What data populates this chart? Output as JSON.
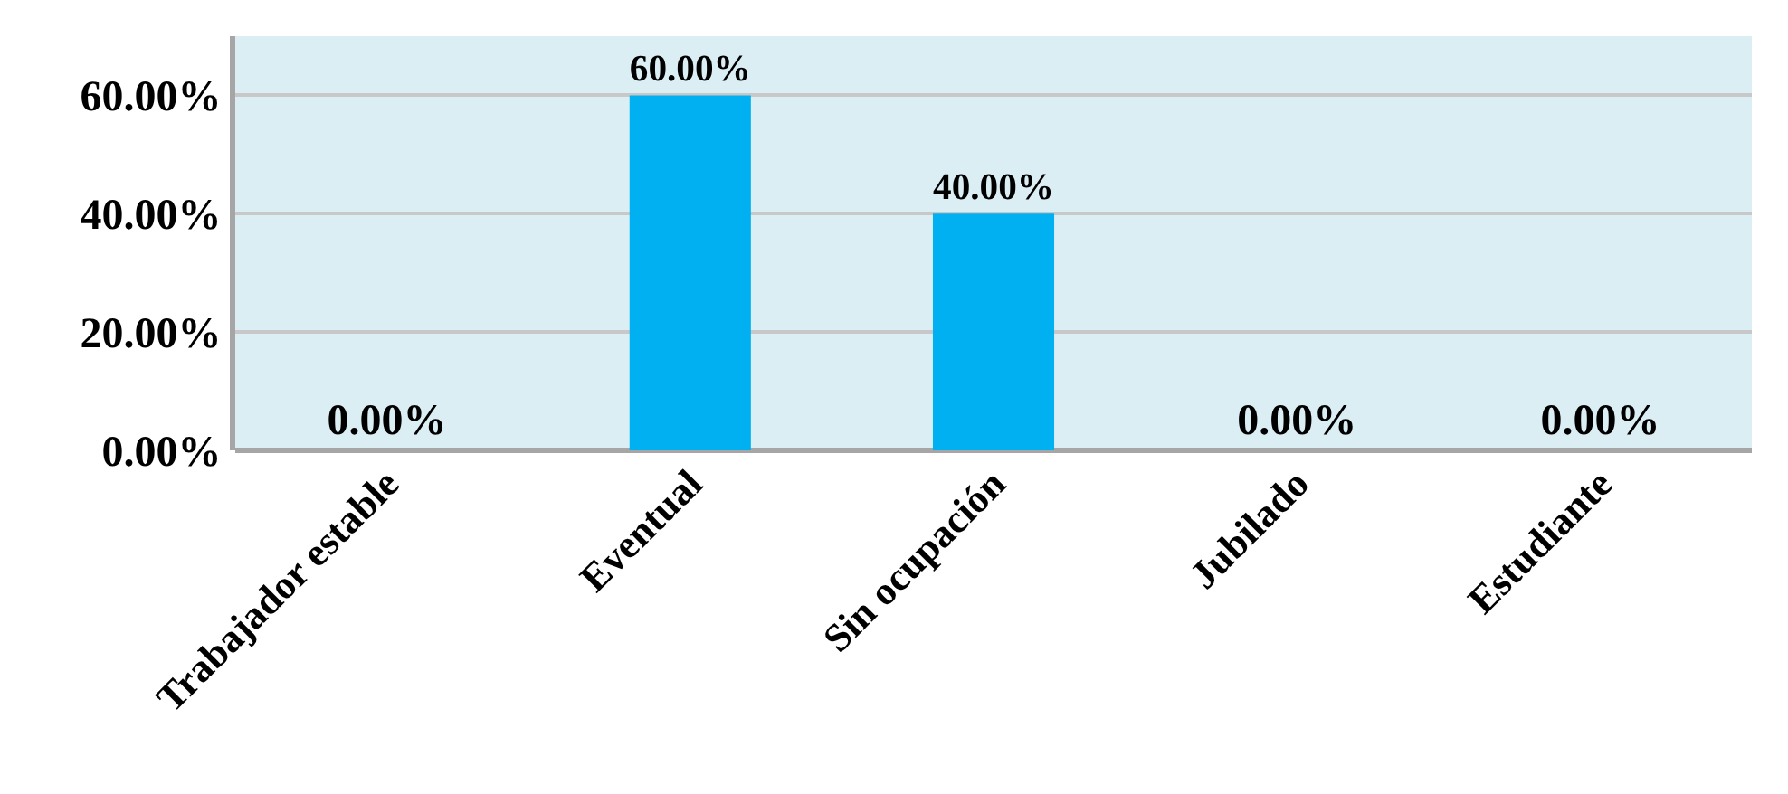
{
  "chart_data": {
    "type": "bar",
    "categories": [
      "Trabajador estable",
      "Eventual",
      "Sin ocupación",
      "Jubilado",
      "Estudiante"
    ],
    "values": [
      0,
      60,
      40,
      0,
      0
    ],
    "value_labels": [
      "0.00%",
      "60.00%",
      "40.00%",
      "0.00%",
      "0.00%"
    ],
    "color": "#00b0f0",
    "ylim": [
      0,
      70
    ],
    "yticks": [
      {
        "value": 0,
        "label": "0.00%"
      },
      {
        "value": 20,
        "label": "20.00%"
      },
      {
        "value": 40,
        "label": "40.00%"
      },
      {
        "value": 60,
        "label": "60.00%"
      }
    ],
    "grid": "y",
    "legend": false
  }
}
